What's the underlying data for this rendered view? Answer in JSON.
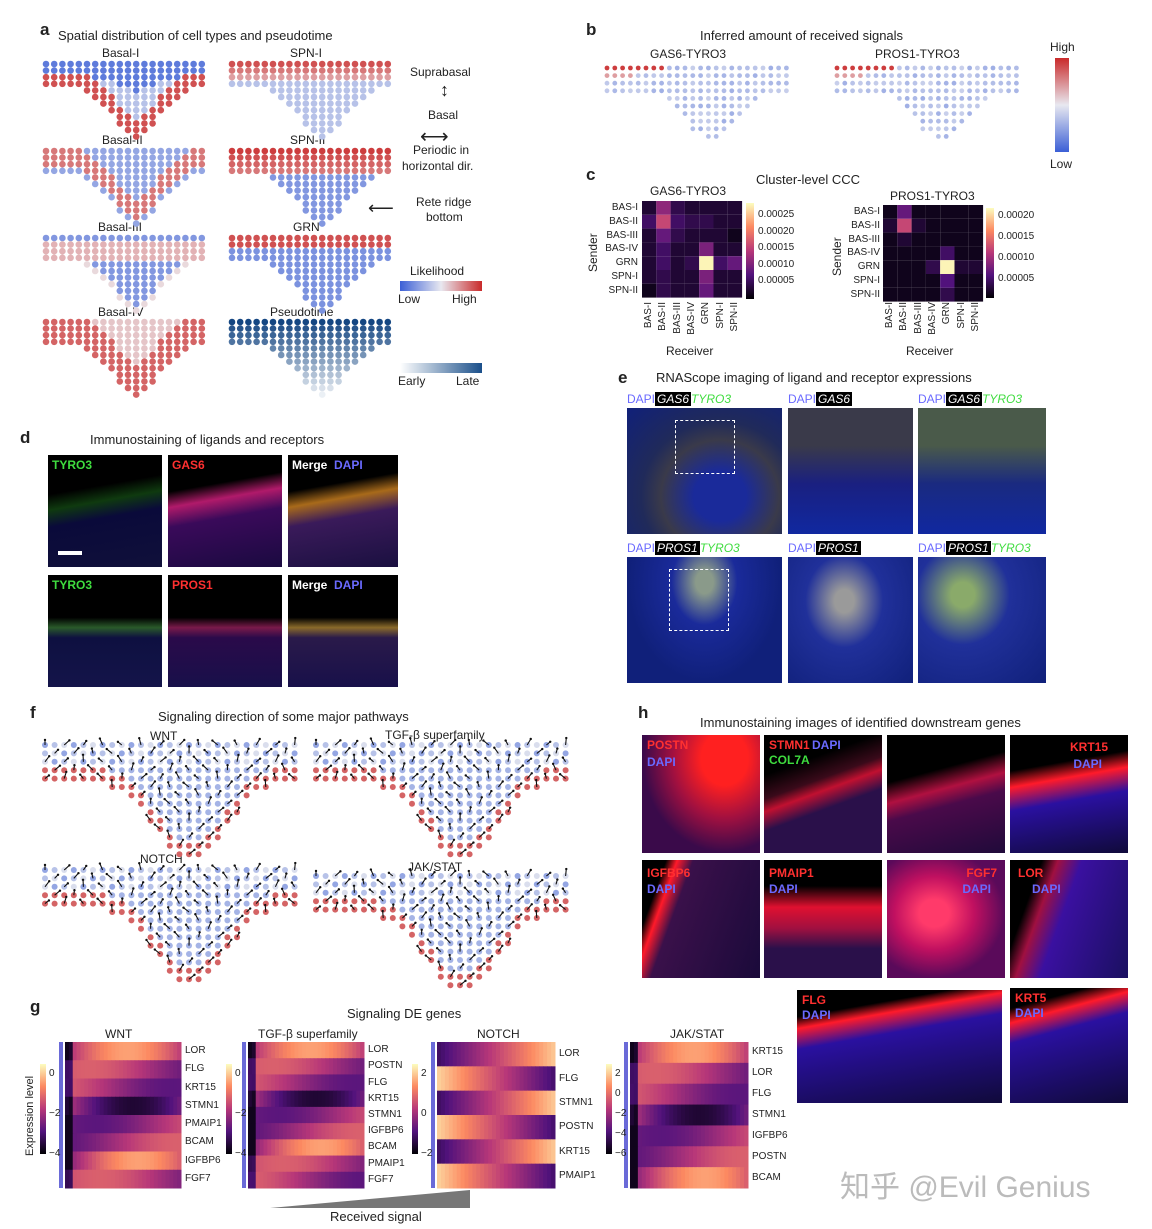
{
  "panels": {
    "a": {
      "label": "a",
      "title": "Spatial distribution of cell types and pseudotime",
      "maps": [
        "Basal-I",
        "SPN-I",
        "Basal-II",
        "SPN-II",
        "Basal-III",
        "GRN",
        "Basal-IV",
        "Pseudotime"
      ],
      "annot": {
        "suprabasal": "Suprabasal",
        "basal": "Basal",
        "periodic1": "Periodic in",
        "periodic2": "horizontal dir.",
        "rete1": "Rete ridge",
        "rete2": "bottom"
      },
      "likelihood": {
        "title": "Likelihood",
        "low": "Low",
        "high": "High"
      },
      "pseudotime": {
        "early": "Early",
        "late": "Late"
      }
    },
    "b": {
      "label": "b",
      "title": "Inferred amount of received signals",
      "maps": [
        "GAS6-TYRO3",
        "PROS1-TYRO3"
      ],
      "scale_high": "High",
      "scale_low": "Low"
    },
    "c": {
      "label": "c",
      "title": "Cluster-level CCC",
      "heatmaps": [
        {
          "name": "GAS6-TYRO3",
          "ticks": [
            "0.00025",
            "0.00020",
            "0.00015",
            "0.00010",
            "0.00005"
          ]
        },
        {
          "name": "PROS1-TYRO3",
          "ticks": [
            "0.00020",
            "0.00015",
            "0.00010",
            "0.00005"
          ]
        }
      ],
      "rows": [
        "BAS-I",
        "BAS-II",
        "BAS-III",
        "BAS-IV",
        "GRN",
        "SPN-I",
        "SPN-II"
      ],
      "sender": "Sender",
      "receiver": "Receiver"
    },
    "d": {
      "label": "d",
      "title": "Immunostaining of ligands and receptors",
      "tiles": [
        "TYRO3",
        "GAS6",
        "Merge",
        "TYRO3",
        "PROS1",
        "Merge"
      ],
      "dapi": "DAPI"
    },
    "e": {
      "label": "e",
      "title": "RNAScope imaging of ligand and receptor expressions",
      "top": [
        "GAS6",
        "TYRO3"
      ],
      "bottom": [
        "PROS1",
        "TYRO3"
      ],
      "dapi": "DAPI"
    },
    "f": {
      "label": "f",
      "title": "Signaling direction of some major pathways",
      "maps": [
        "WNT",
        "TGF-β superfamily",
        "NOTCH",
        "JAK/STAT"
      ]
    },
    "g": {
      "label": "g",
      "title": "Signaling DE genes",
      "ylabel": "Expression level",
      "xlabel": "Received signal",
      "heatmaps": [
        {
          "name": "WNT",
          "genes": [
            "LOR",
            "FLG",
            "KRT15",
            "STMN1",
            "PMAIP1",
            "BCAM",
            "IGFBP6",
            "FGF7"
          ],
          "ticks": [
            "0",
            "−2",
            "−4"
          ]
        },
        {
          "name": "TGF-β superfamily",
          "genes": [
            "LOR",
            "POSTN",
            "FLG",
            "KRT15",
            "STMN1",
            "IGFBP6",
            "BCAM",
            "PMAIP1",
            "FGF7"
          ],
          "ticks": [
            "0",
            "−2",
            "−4"
          ]
        },
        {
          "name": "NOTCH",
          "genes": [
            "LOR",
            "FLG",
            "STMN1",
            "POSTN",
            "KRT15",
            "PMAIP1"
          ],
          "ticks": [
            "2",
            "0",
            "−2"
          ]
        },
        {
          "name": "JAK/STAT",
          "genes": [
            "KRT15",
            "LOR",
            "FLG",
            "STMN1",
            "IGFBP6",
            "POSTN",
            "BCAM"
          ],
          "ticks": [
            "2",
            "0",
            "−2",
            "−4",
            "−6"
          ]
        }
      ]
    },
    "h": {
      "label": "h",
      "title": "Immunostaining images of identified downstream genes",
      "tiles": [
        "POSTN",
        "STMN1",
        "COL7A",
        "KRT15",
        "IGFBP6",
        "PMAIP1",
        "FGF7",
        "LOR",
        "FLG",
        "KRT5"
      ],
      "dapi": "DAPI"
    }
  },
  "watermark": "知乎 @Evil Genius"
}
